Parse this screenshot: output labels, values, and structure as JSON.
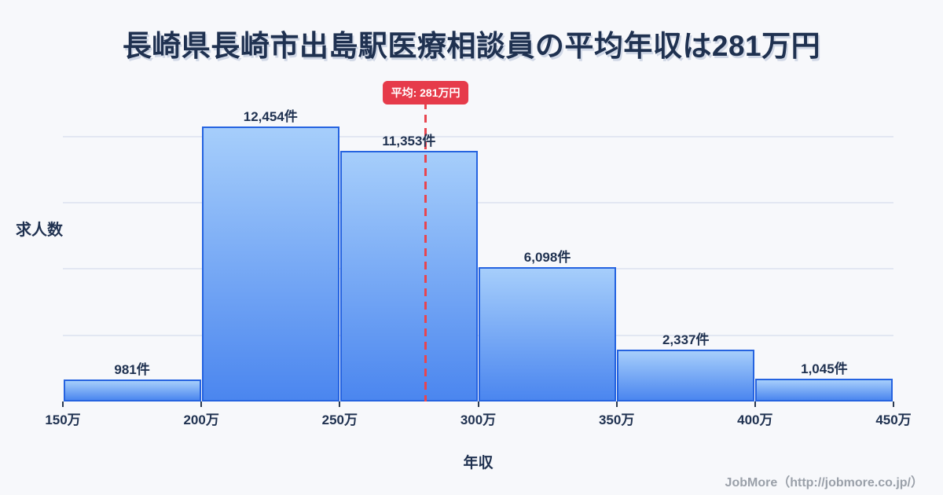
{
  "title": "長崎県長崎市出島駅医療相談員の平均年収は281万円",
  "chart_data": {
    "type": "bar",
    "subtype": "histogram",
    "title": "長崎県長崎市出島駅医療相談員の平均年収は281万円",
    "xlabel": "年収",
    "ylabel": "求人数",
    "bin_edge_labels": [
      "150万",
      "200万",
      "250万",
      "300万",
      "350万",
      "400万",
      "450万"
    ],
    "bin_edge_values": [
      150,
      200,
      250,
      300,
      350,
      400,
      450
    ],
    "values": [
      981,
      12454,
      11353,
      6098,
      2337,
      1045
    ],
    "value_labels": [
      "981件",
      "12,454件",
      "11,353件",
      "6,098件",
      "2,337件",
      "1,045件"
    ],
    "ylim": [
      0,
      12454
    ],
    "gridline_values": [
      3000,
      6000,
      9000,
      12000
    ],
    "grid": "horizontal-faint",
    "legend": "none",
    "average": {
      "value": 281,
      "label": "平均: 281万円"
    }
  },
  "footer": {
    "credit": "JobMore（http://jobmore.co.jp/）"
  },
  "colors": {
    "background": "#f7f8fb",
    "title_text": "#1f3150",
    "axis_text": "#1f3150",
    "bar_fill_top": "#a6cefb",
    "bar_fill_bottom": "#4b86ef",
    "bar_border": "#2563e0",
    "gridline": "#e2e7f2",
    "average_line": "#e8454f",
    "badge_background": "#e63b4a",
    "badge_text": "#ffffff",
    "footer_text": "#9aa0a9"
  }
}
